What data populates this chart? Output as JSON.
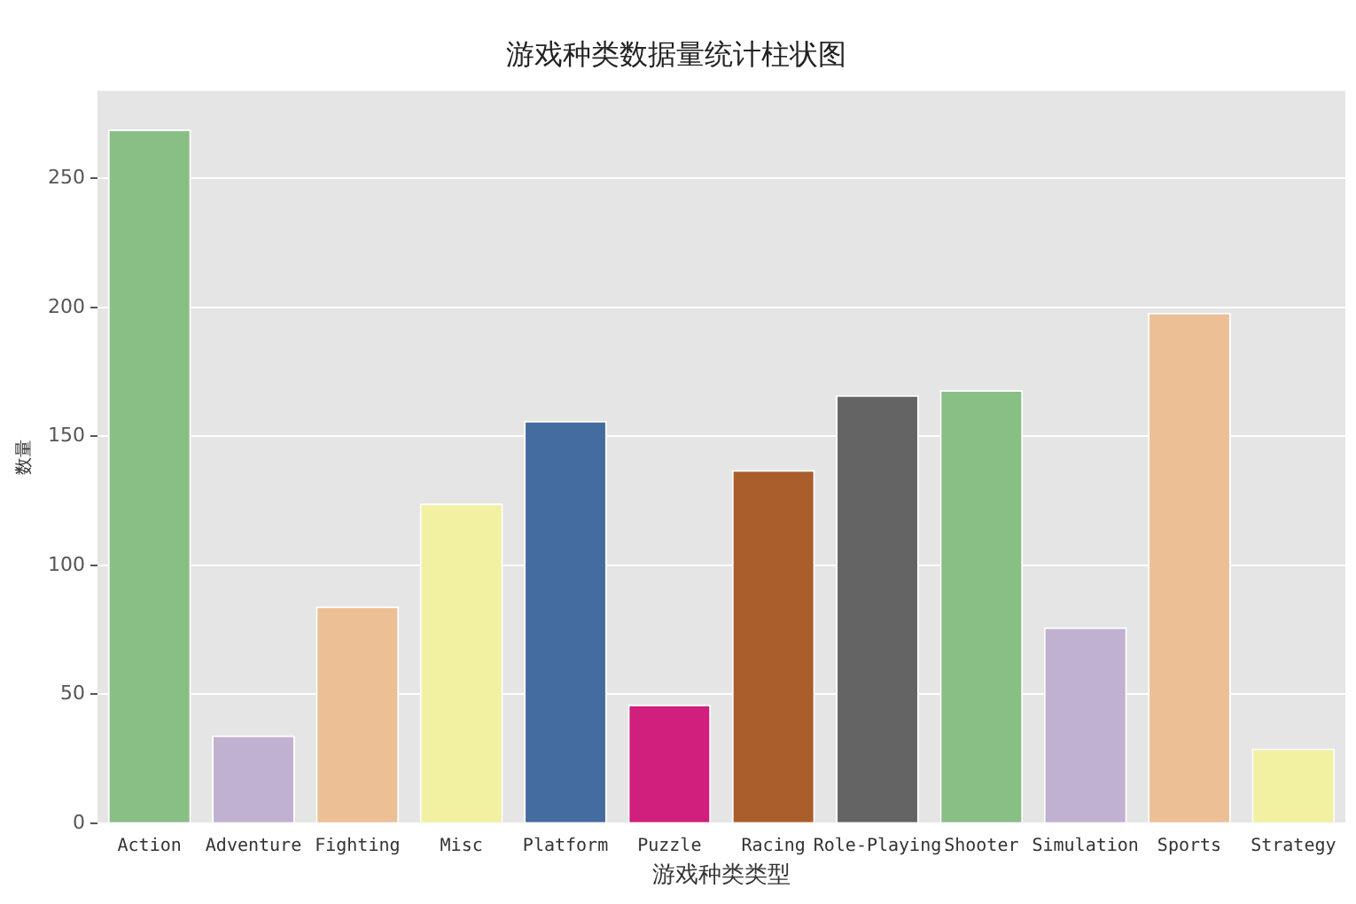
{
  "chart_data": {
    "type": "bar",
    "title": "游戏种类数据量统计柱状图",
    "xlabel": "游戏种类类型",
    "ylabel": "数量",
    "categories": [
      "Action",
      "Adventure",
      "Fighting",
      "Misc",
      "Platform",
      "Puzzle",
      "Racing",
      "Role-Playing",
      "Shooter",
      "Simulation",
      "Sports",
      "Strategy"
    ],
    "values": [
      269,
      34,
      84,
      124,
      156,
      46,
      137,
      166,
      168,
      76,
      198,
      29
    ],
    "colors": [
      "#88bf85",
      "#c0b1d0",
      "#ecbf94",
      "#f2f1a2",
      "#446ca0",
      "#d01f7c",
      "#a95e2c",
      "#646464",
      "#88bf85",
      "#c0b1d0",
      "#ecbf94",
      "#f2f1a2"
    ],
    "ylim": [
      0,
      284
    ],
    "yticks": [
      0,
      50,
      100,
      150,
      200,
      250
    ],
    "grid": "y"
  }
}
